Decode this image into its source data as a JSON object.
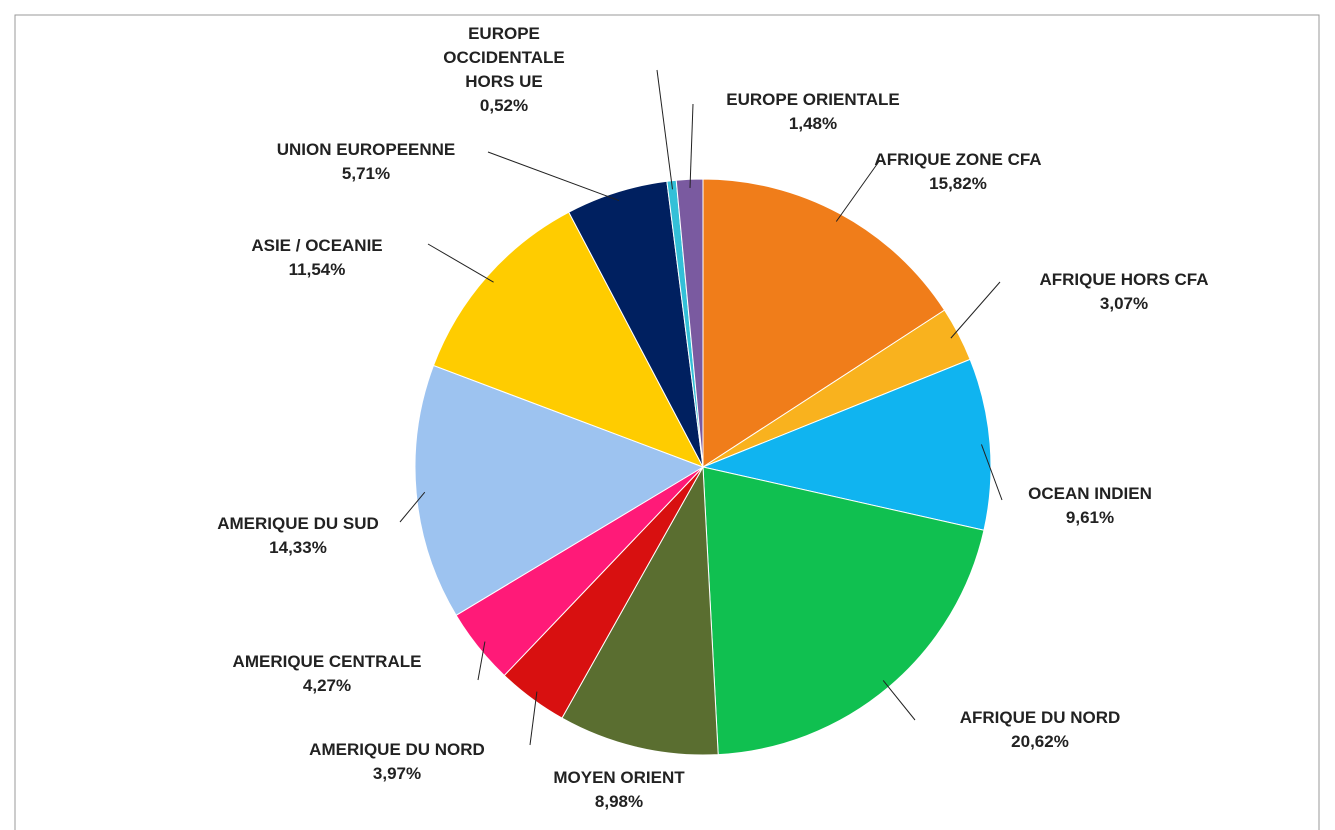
{
  "chart_data": {
    "type": "pie",
    "categories": [
      "AFRIQUE ZONE CFA",
      "AFRIQUE HORS CFA",
      "OCEAN INDIEN",
      "AFRIQUE DU NORD",
      "MOYEN ORIENT",
      "AMERIQUE DU NORD",
      "AMERIQUE CENTRALE",
      "AMERIQUE DU SUD",
      "ASIE / OCEANIE",
      "UNION EUROPEENNE",
      "EUROPE OCCIDENTALE HORS UE",
      "EUROPE ORIENTALE"
    ],
    "values": [
      15.82,
      3.07,
      9.61,
      20.62,
      8.98,
      3.97,
      4.27,
      14.33,
      11.54,
      5.71,
      0.52,
      1.48
    ],
    "value_labels": [
      "15,82%",
      "3,07%",
      "9,61%",
      "20,62%",
      "8,98%",
      "3,97%",
      "4,27%",
      "14,33%",
      "11,54%",
      "5,71%",
      "0,52%",
      "1,48%"
    ],
    "colors": [
      "#f07d1a",
      "#f9b21e",
      "#10b4f0",
      "#10c050",
      "#5a6e30",
      "#d81010",
      "#ff1a78",
      "#9dc3f0",
      "#ffcc00",
      "#002060",
      "#33c0d8",
      "#7a5aa0"
    ]
  }
}
